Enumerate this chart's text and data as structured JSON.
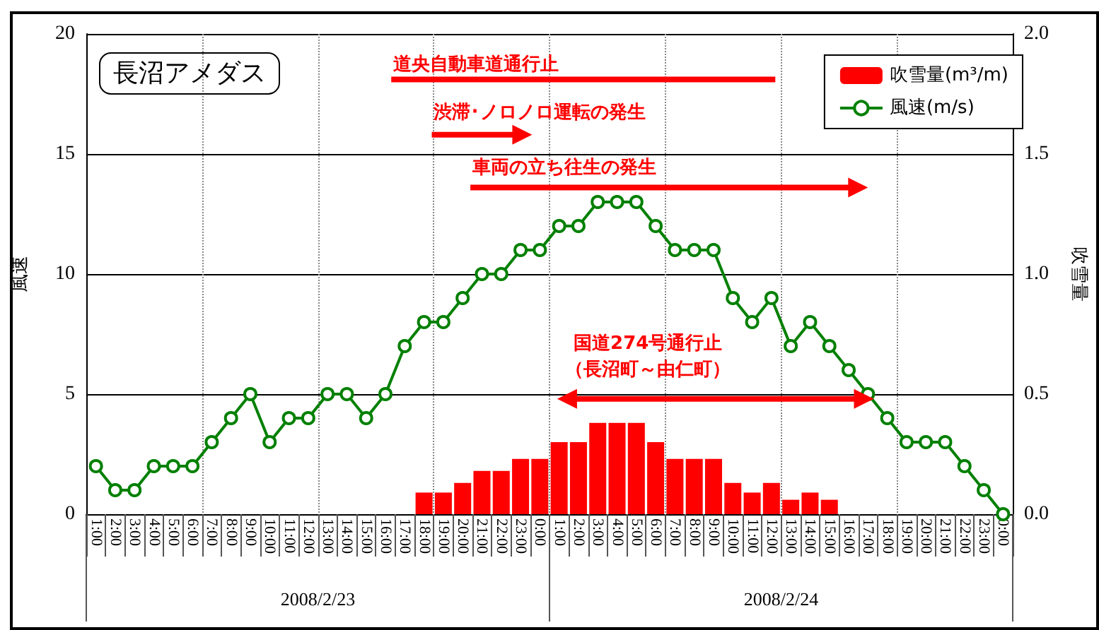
{
  "chart_data": {
    "type": "bar",
    "title": "長沼アメダス",
    "ylabel": "風速",
    "y2label": "吹雪量",
    "categories": [
      "1:00",
      "2:00",
      "3:00",
      "4:00",
      "5:00",
      "6:00",
      "7:00",
      "8:00",
      "9:00",
      "10:00",
      "11:00",
      "12:00",
      "13:00",
      "14:00",
      "15:00",
      "16:00",
      "17:00",
      "18:00",
      "19:00",
      "20:00",
      "21:00",
      "22:00",
      "23:00",
      "0:00",
      "1:00",
      "2:00",
      "3:00",
      "4:00",
      "5:00",
      "6:00",
      "7:00",
      "8:00",
      "9:00",
      "10:00",
      "11:00",
      "12:00",
      "13:00",
      "14:00",
      "15:00",
      "16:00",
      "17:00",
      "18:00",
      "19:00",
      "20:00",
      "21:00",
      "22:00",
      "23:00",
      "0:00"
    ],
    "series": [
      {
        "name": "吹雪量(m³/m)",
        "axis": "y2",
        "color": "#ff0000",
        "values": [
          null,
          null,
          null,
          null,
          null,
          null,
          null,
          null,
          null,
          null,
          null,
          null,
          null,
          null,
          null,
          null,
          null,
          0.09,
          0.09,
          0.13,
          0.18,
          0.18,
          0.23,
          0.23,
          0.3,
          0.3,
          0.38,
          0.38,
          0.38,
          0.3,
          0.23,
          0.23,
          0.23,
          0.13,
          0.09,
          0.13,
          0.06,
          0.09,
          0.06,
          null,
          null,
          null,
          null,
          null,
          null,
          null,
          null,
          null
        ]
      },
      {
        "name": "風速(m/s)",
        "type": "line",
        "color": "#008000",
        "marker": "circle",
        "values": [
          2,
          1,
          1,
          2,
          2,
          2,
          3,
          4,
          5,
          3,
          4,
          4,
          5,
          5,
          4,
          5,
          7,
          8,
          8,
          9,
          10,
          10,
          11,
          11,
          12,
          12,
          13,
          13,
          13,
          12,
          11,
          11,
          11,
          9,
          8,
          9,
          7,
          8,
          7,
          6,
          5,
          4,
          3,
          3,
          3,
          2,
          1,
          0
        ]
      }
    ],
    "ylim": [
      0,
      20
    ],
    "yticks": [
      0,
      5,
      10,
      15,
      20
    ],
    "y2lim": [
      0,
      2
    ],
    "y2ticks": [
      {
        "value": 0,
        "label": "0.0"
      },
      {
        "value": 0.5,
        "label": "0.5"
      },
      {
        "value": 1,
        "label": "1.0"
      },
      {
        "value": 1.5,
        "label": "1.5"
      },
      {
        "value": 2,
        "label": "2.0"
      }
    ],
    "grid": true,
    "legend": "top right",
    "annotations": [
      "道央自動車道通行止",
      "渋滞･ノロノロ運転の発生",
      "車両の立ち往生の発生",
      "国道274号通行止",
      "（長沼町～由仁町）",
      "2008/2/23",
      "2008/2/24"
    ]
  }
}
